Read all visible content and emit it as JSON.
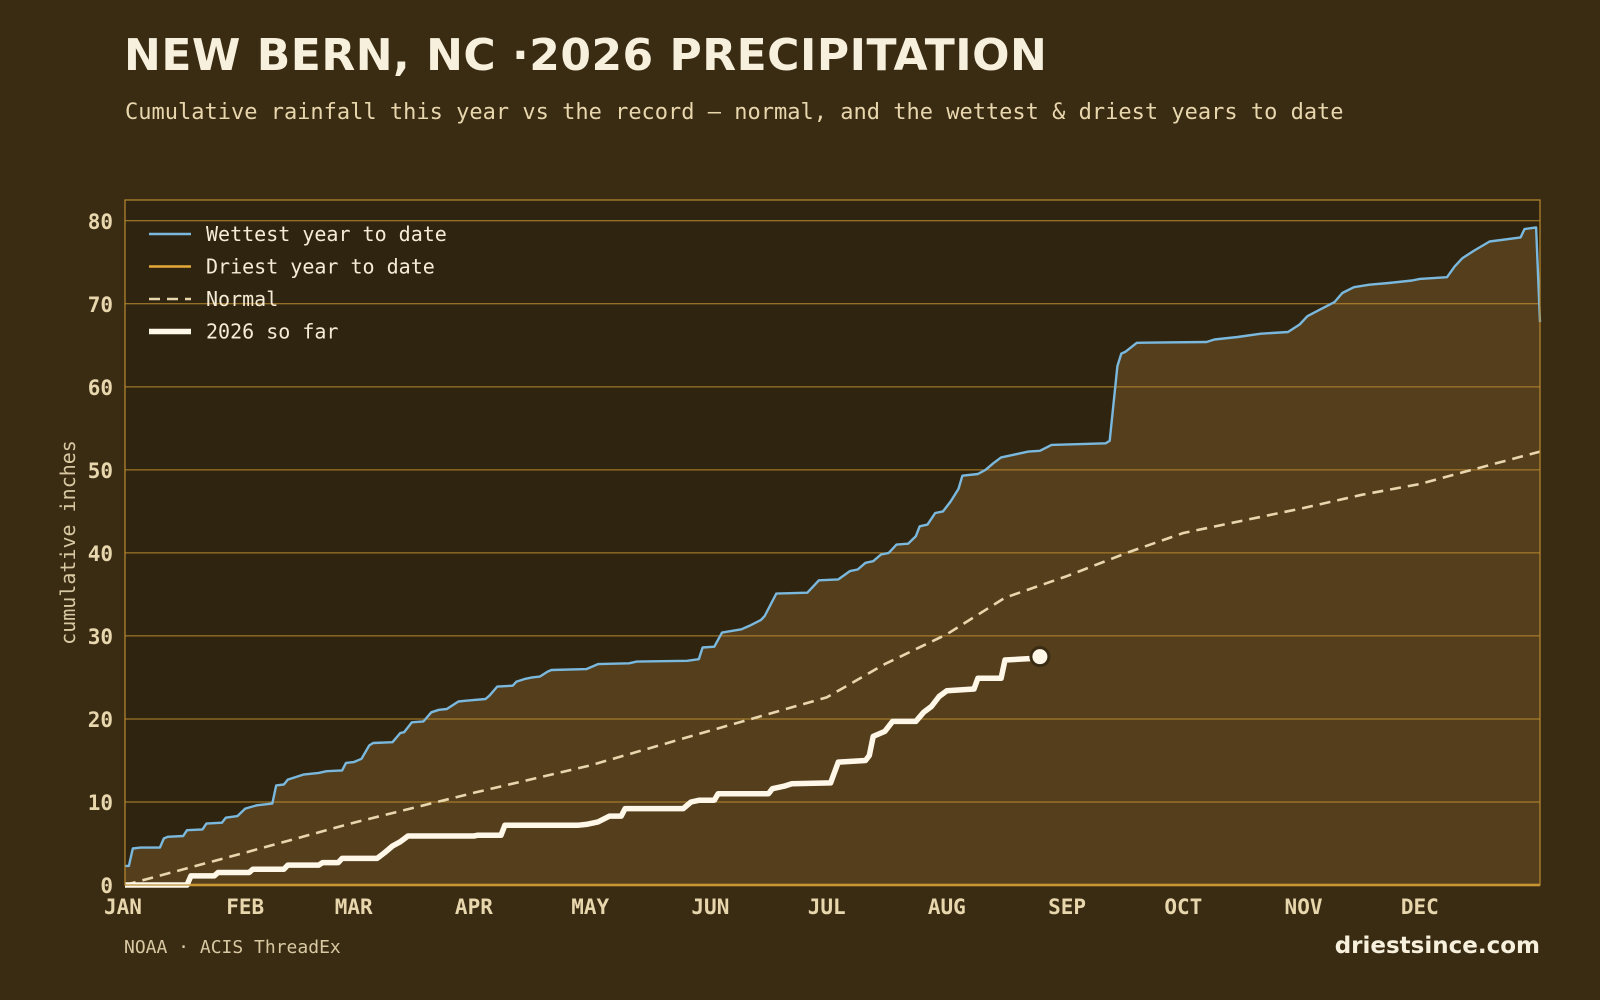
{
  "header": {
    "title": "NEW BERN, NC ·2026 PRECIPITATION",
    "subtitle": "Cumulative rainfall this year vs the record — normal, and the wettest & driest years to date"
  },
  "footer": {
    "source": "NOAA · ACIS ThreadEx",
    "site": "driestsince.com"
  },
  "colors": {
    "background": "#3a2b13",
    "plot_background": "#2f2410",
    "band_fill": "#553e1c",
    "gridline": "#b8892e",
    "wettest": "#7ab8dd",
    "driest": "#e6a93a",
    "normal": "#e8d6ad",
    "current": "#fff8e8"
  },
  "chart_data": {
    "type": "line",
    "ylabel": "cumulative inches",
    "xlabel": "",
    "ylim": [
      0,
      82.5
    ],
    "xlim": [
      1,
      366
    ],
    "yticks": [
      0,
      10,
      20,
      30,
      40,
      50,
      60,
      70,
      80
    ],
    "xticks": [
      {
        "label": "JAN",
        "day": 1
      },
      {
        "label": "FEB",
        "day": 32
      },
      {
        "label": "MAR",
        "day": 60
      },
      {
        "label": "APR",
        "day": 91
      },
      {
        "label": "MAY",
        "day": 121
      },
      {
        "label": "JUN",
        "day": 152
      },
      {
        "label": "JUL",
        "day": 182
      },
      {
        "label": "AUG",
        "day": 213
      },
      {
        "label": "SEP",
        "day": 244
      },
      {
        "label": "OCT",
        "day": 274
      },
      {
        "label": "NOV",
        "day": 305
      },
      {
        "label": "DEC",
        "day": 335
      }
    ],
    "grid": true,
    "legend_position": "top-left",
    "series": [
      {
        "name": "Wettest year to date",
        "style": "solid",
        "points": [
          [
            1,
            2.3
          ],
          [
            2,
            2.3
          ],
          [
            3,
            4.4
          ],
          [
            5,
            4.5
          ],
          [
            10,
            4.5
          ],
          [
            11,
            5.6
          ],
          [
            12,
            5.8
          ],
          [
            16,
            5.9
          ],
          [
            17,
            6.6
          ],
          [
            21,
            6.7
          ],
          [
            22,
            7.4
          ],
          [
            26,
            7.5
          ],
          [
            27,
            8.1
          ],
          [
            30,
            8.3
          ],
          [
            32,
            9.2
          ],
          [
            35,
            9.6
          ],
          [
            39,
            9.8
          ],
          [
            40,
            12.0
          ],
          [
            42,
            12.1
          ],
          [
            43,
            12.7
          ],
          [
            47,
            13.3
          ],
          [
            51,
            13.5
          ],
          [
            53,
            13.7
          ],
          [
            57,
            13.8
          ],
          [
            58,
            14.7
          ],
          [
            60,
            14.8
          ],
          [
            62,
            15.2
          ],
          [
            64,
            16.8
          ],
          [
            65,
            17.1
          ],
          [
            70,
            17.2
          ],
          [
            72,
            18.3
          ],
          [
            73,
            18.4
          ],
          [
            75,
            19.6
          ],
          [
            78,
            19.7
          ],
          [
            80,
            20.8
          ],
          [
            82,
            21.1
          ],
          [
            84,
            21.2
          ],
          [
            87,
            22.1
          ],
          [
            89,
            22.2
          ],
          [
            94,
            22.4
          ],
          [
            95,
            22.8
          ],
          [
            97,
            23.9
          ],
          [
            101,
            24.0
          ],
          [
            102,
            24.5
          ],
          [
            104,
            24.8
          ],
          [
            106,
            25.0
          ],
          [
            108,
            25.1
          ],
          [
            110,
            25.7
          ],
          [
            111,
            25.9
          ],
          [
            120,
            26.0
          ],
          [
            123,
            26.6
          ],
          [
            131,
            26.7
          ],
          [
            133,
            26.9
          ],
          [
            146,
            27.0
          ],
          [
            149,
            27.2
          ],
          [
            150,
            28.6
          ],
          [
            153,
            28.7
          ],
          [
            155,
            30.4
          ],
          [
            160,
            30.8
          ],
          [
            162,
            31.2
          ],
          [
            165,
            31.9
          ],
          [
            166,
            32.4
          ],
          [
            169,
            35.1
          ],
          [
            177,
            35.2
          ],
          [
            178,
            35.7
          ],
          [
            180,
            36.7
          ],
          [
            185,
            36.8
          ],
          [
            188,
            37.8
          ],
          [
            190,
            38.0
          ],
          [
            192,
            38.8
          ],
          [
            194,
            39.0
          ],
          [
            196,
            39.8
          ],
          [
            198,
            40.0
          ],
          [
            200,
            41.0
          ],
          [
            203,
            41.1
          ],
          [
            205,
            42.0
          ],
          [
            206,
            43.2
          ],
          [
            208,
            43.4
          ],
          [
            210,
            44.8
          ],
          [
            212,
            45.0
          ],
          [
            214,
            46.2
          ],
          [
            216,
            47.7
          ],
          [
            217,
            49.3
          ],
          [
            221,
            49.5
          ],
          [
            223,
            50.0
          ],
          [
            225,
            50.8
          ],
          [
            227,
            51.5
          ],
          [
            230,
            51.8
          ],
          [
            234,
            52.2
          ],
          [
            237,
            52.3
          ],
          [
            240,
            53.0
          ],
          [
            254,
            53.2
          ],
          [
            255,
            53.5
          ],
          [
            257,
            62.5
          ],
          [
            258,
            64.0
          ],
          [
            259,
            64.2
          ],
          [
            262,
            65.3
          ],
          [
            280,
            65.4
          ],
          [
            282,
            65.7
          ],
          [
            288,
            66.0
          ],
          [
            294,
            66.4
          ],
          [
            301,
            66.6
          ],
          [
            304,
            67.5
          ],
          [
            306,
            68.5
          ],
          [
            308,
            69.0
          ],
          [
            313,
            70.2
          ],
          [
            315,
            71.3
          ],
          [
            318,
            72.0
          ],
          [
            322,
            72.3
          ],
          [
            327,
            72.5
          ],
          [
            333,
            72.8
          ],
          [
            335,
            73.0
          ],
          [
            342,
            73.2
          ],
          [
            344,
            74.5
          ],
          [
            346,
            75.5
          ],
          [
            349,
            76.4
          ],
          [
            353,
            77.5
          ],
          [
            361,
            78.0
          ],
          [
            362,
            79.0
          ],
          [
            365,
            79.2
          ],
          [
            366,
            67.8
          ]
        ]
      },
      {
        "name": "Driest year to date",
        "style": "solid",
        "points": [
          [
            1,
            0.0
          ],
          [
            366,
            0.0
          ]
        ]
      },
      {
        "name": "Normal",
        "style": "dashed",
        "points": [
          [
            1,
            0.0
          ],
          [
            32,
            3.9
          ],
          [
            60,
            7.5
          ],
          [
            91,
            11.1
          ],
          [
            121,
            14.4
          ],
          [
            152,
            18.6
          ],
          [
            182,
            22.6
          ],
          [
            197,
            26.6
          ],
          [
            213,
            30.2
          ],
          [
            228,
            34.6
          ],
          [
            244,
            37.2
          ],
          [
            260,
            40.1
          ],
          [
            274,
            42.4
          ],
          [
            305,
            45.4
          ],
          [
            320,
            47.0
          ],
          [
            335,
            48.3
          ],
          [
            350,
            50.2
          ],
          [
            366,
            52.2
          ]
        ]
      },
      {
        "name": "2026 so far",
        "style": "bold",
        "points": [
          [
            1,
            0.0
          ],
          [
            17,
            0.0
          ],
          [
            18,
            1.1
          ],
          [
            24,
            1.1
          ],
          [
            25,
            1.5
          ],
          [
            33,
            1.5
          ],
          [
            34,
            1.9
          ],
          [
            42,
            1.9
          ],
          [
            43,
            2.4
          ],
          [
            51,
            2.4
          ],
          [
            52,
            2.7
          ],
          [
            56,
            2.7
          ],
          [
            57,
            3.2
          ],
          [
            66,
            3.2
          ],
          [
            68,
            3.9
          ],
          [
            70,
            4.7
          ],
          [
            72,
            5.2
          ],
          [
            74,
            5.9
          ],
          [
            91,
            5.9
          ],
          [
            92,
            6.0
          ],
          [
            98,
            6.0
          ],
          [
            99,
            7.2
          ],
          [
            118,
            7.2
          ],
          [
            120,
            7.3
          ],
          [
            123,
            7.6
          ],
          [
            126,
            8.3
          ],
          [
            129,
            8.3
          ],
          [
            130,
            9.2
          ],
          [
            145,
            9.2
          ],
          [
            147,
            10.0
          ],
          [
            149,
            10.2
          ],
          [
            153,
            10.2
          ],
          [
            154,
            11.0
          ],
          [
            167,
            11.0
          ],
          [
            168,
            11.6
          ],
          [
            171,
            11.9
          ],
          [
            173,
            12.2
          ],
          [
            183,
            12.3
          ],
          [
            185,
            14.8
          ],
          [
            192,
            15.0
          ],
          [
            193,
            15.6
          ],
          [
            194,
            17.9
          ],
          [
            197,
            18.5
          ],
          [
            199,
            19.7
          ],
          [
            205,
            19.7
          ],
          [
            207,
            20.8
          ],
          [
            209,
            21.5
          ],
          [
            211,
            22.7
          ],
          [
            213,
            23.4
          ],
          [
            220,
            23.6
          ],
          [
            221,
            24.9
          ],
          [
            227,
            24.9
          ],
          [
            228,
            27.1
          ],
          [
            236,
            27.3
          ],
          [
            237,
            27.5
          ]
        ]
      }
    ],
    "current_marker": {
      "day": 237,
      "value": 27.5
    }
  }
}
